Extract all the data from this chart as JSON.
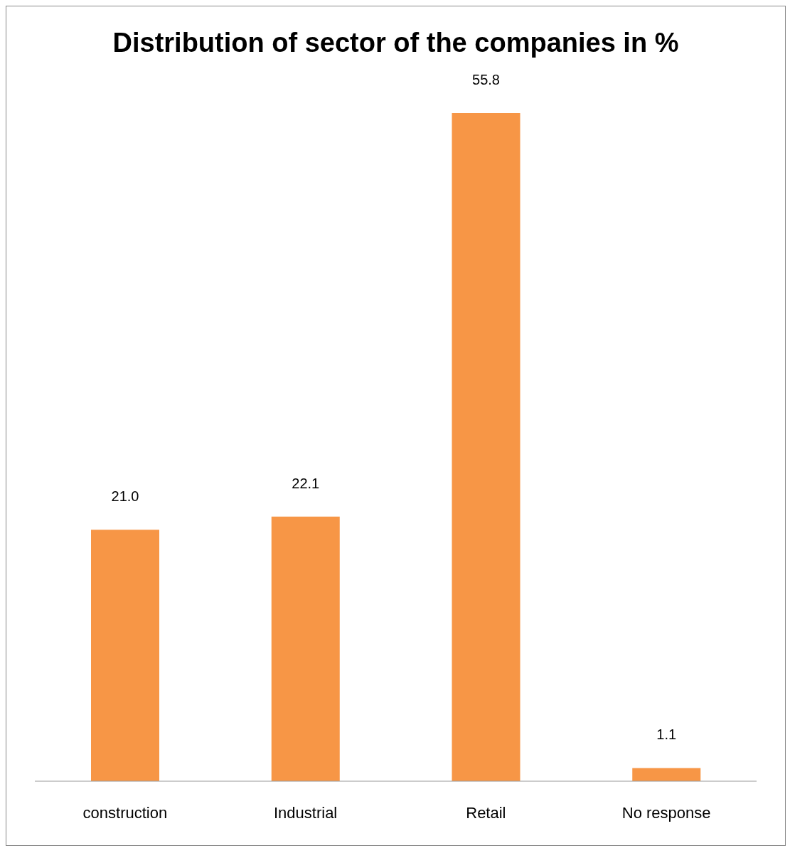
{
  "chart_data": {
    "type": "bar",
    "title": "Distribution of sector of the companies in %",
    "categories": [
      "construction",
      "Industrial",
      "Retail",
      "No response"
    ],
    "values": [
      21.0,
      22.1,
      55.8,
      1.1
    ],
    "value_labels": [
      "21.0",
      "22.1",
      "55.8",
      "1.1"
    ],
    "color": "#f79646",
    "tick_labels": "x"
  }
}
